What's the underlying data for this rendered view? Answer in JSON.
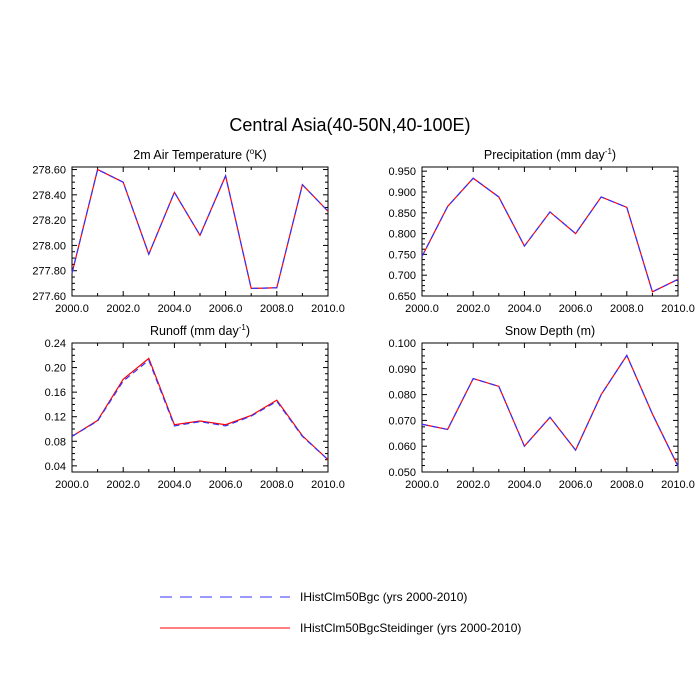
{
  "title": "Central Asia(40-50N,40-100E)",
  "legend": {
    "placement": "bottom-center",
    "entries": [
      {
        "label": "IHistClm50Bgc (yrs 2000-2010)",
        "color": "#3333ff",
        "dash": "dashed"
      },
      {
        "label": "IHistClm50BgcSteidinger (yrs 2000-2010)",
        "color": "#ff0000",
        "dash": "solid"
      }
    ]
  },
  "chart_data": [
    {
      "type": "line",
      "title": "2m Air Temperature (°K)",
      "title_main": "2m Air Temperature (",
      "title_sup": "o",
      "title_tail": "K)",
      "x": [
        2000,
        2001,
        2002,
        2003,
        2004,
        2005,
        2006,
        2007,
        2008,
        2009,
        2010
      ],
      "xlim": [
        2000,
        2010
      ],
      "ylim": [
        277.6,
        278.62
      ],
      "xticks": [
        "2000.0",
        "2002.0",
        "2004.0",
        "2006.0",
        "2008.0",
        "2010.0"
      ],
      "xtick_values": [
        2000,
        2002,
        2004,
        2006,
        2008,
        2010
      ],
      "yticks": [
        "277.60",
        "277.80",
        "278.00",
        "278.20",
        "278.40",
        "278.60"
      ],
      "ytick_values": [
        277.6,
        277.8,
        278.0,
        278.2,
        278.4,
        278.6
      ],
      "series": [
        {
          "name": "IHistClm50Bgc (yrs 2000-2010)",
          "values": [
            277.78,
            278.6,
            278.5,
            277.93,
            278.42,
            278.08,
            278.55,
            277.66,
            277.665,
            278.48,
            278.27
          ]
        },
        {
          "name": "IHistClm50BgcSteidinger (yrs 2000-2010)",
          "values": [
            277.78,
            278.6,
            278.5,
            277.93,
            278.42,
            278.08,
            278.55,
            277.66,
            277.665,
            278.48,
            278.27
          ]
        }
      ]
    },
    {
      "type": "line",
      "title": "Precipitation (mm day-1)",
      "title_main": "Precipitation (mm day",
      "title_sup": "-1",
      "title_tail": ")",
      "x": [
        2000,
        2001,
        2002,
        2003,
        2004,
        2005,
        2006,
        2007,
        2008,
        2009,
        2010
      ],
      "xlim": [
        2000,
        2010
      ],
      "ylim": [
        0.65,
        0.96
      ],
      "xticks": [
        "2000.0",
        "2002.0",
        "2004.0",
        "2006.0",
        "2008.0",
        "2010.0"
      ],
      "xtick_values": [
        2000,
        2002,
        2004,
        2006,
        2008,
        2010
      ],
      "yticks": [
        "0.650",
        "0.700",
        "0.750",
        "0.800",
        "0.850",
        "0.900",
        "0.950"
      ],
      "ytick_values": [
        0.65,
        0.7,
        0.75,
        0.8,
        0.85,
        0.9,
        0.95
      ],
      "series": [
        {
          "name": "IHistClm50Bgc (yrs 2000-2010)",
          "values": [
            0.745,
            0.865,
            0.933,
            0.888,
            0.77,
            0.852,
            0.8,
            0.888,
            0.863,
            0.66,
            0.69
          ]
        },
        {
          "name": "IHistClm50BgcSteidinger (yrs 2000-2010)",
          "values": [
            0.745,
            0.865,
            0.933,
            0.888,
            0.77,
            0.852,
            0.8,
            0.888,
            0.863,
            0.66,
            0.69
          ]
        }
      ]
    },
    {
      "type": "line",
      "title": "Runoff (mm day-1)",
      "title_main": "Runoff (mm day",
      "title_sup": "-1",
      "title_tail": ")",
      "x": [
        2000,
        2001,
        2002,
        2003,
        2004,
        2005,
        2006,
        2007,
        2008,
        2009,
        2010
      ],
      "xlim": [
        2000,
        2010
      ],
      "ylim": [
        0.03,
        0.24
      ],
      "xticks": [
        "2000.0",
        "2002.0",
        "2004.0",
        "2006.0",
        "2008.0",
        "2010.0"
      ],
      "xtick_values": [
        2000,
        2002,
        2004,
        2006,
        2008,
        2010
      ],
      "yticks": [
        "0.04",
        "0.08",
        "0.12",
        "0.16",
        "0.20",
        "0.24"
      ],
      "ytick_values": [
        0.04,
        0.08,
        0.12,
        0.16,
        0.2,
        0.24
      ],
      "series": [
        {
          "name": "IHistClm50Bgc (yrs 2000-2010)",
          "values": [
            0.088,
            0.113,
            0.178,
            0.212,
            0.105,
            0.112,
            0.105,
            0.121,
            0.145,
            0.088,
            0.05
          ]
        },
        {
          "name": "IHistClm50BgcSteidinger (yrs 2000-2010)",
          "values": [
            0.088,
            0.114,
            0.181,
            0.215,
            0.107,
            0.113,
            0.107,
            0.122,
            0.147,
            0.089,
            0.05
          ]
        }
      ]
    },
    {
      "type": "line",
      "title": "Snow Depth (m)",
      "title_main": "Snow Depth (m)",
      "title_sup": "",
      "title_tail": "",
      "x": [
        2000,
        2001,
        2002,
        2003,
        2004,
        2005,
        2006,
        2007,
        2008,
        2009,
        2010
      ],
      "xlim": [
        2000,
        2010
      ],
      "ylim": [
        0.05,
        0.1
      ],
      "xticks": [
        "2000.0",
        "2002.0",
        "2004.0",
        "2006.0",
        "2008.0",
        "2010.0"
      ],
      "xtick_values": [
        2000,
        2002,
        2004,
        2006,
        2008,
        2010
      ],
      "yticks": [
        "0.050",
        "0.060",
        "0.070",
        "0.080",
        "0.090",
        "0.100"
      ],
      "ytick_values": [
        0.05,
        0.06,
        0.07,
        0.08,
        0.09,
        0.1
      ],
      "series": [
        {
          "name": "IHistClm50Bgc (yrs 2000-2010)",
          "values": [
            0.0685,
            0.0665,
            0.0862,
            0.0832,
            0.06,
            0.0712,
            0.0585,
            0.08,
            0.0952,
            0.0725,
            0.0522
          ]
        },
        {
          "name": "IHistClm50BgcSteidinger (yrs 2000-2010)",
          "values": [
            0.0685,
            0.0665,
            0.0862,
            0.0832,
            0.06,
            0.0712,
            0.0585,
            0.08,
            0.0952,
            0.0725,
            0.0522
          ]
        }
      ]
    }
  ]
}
